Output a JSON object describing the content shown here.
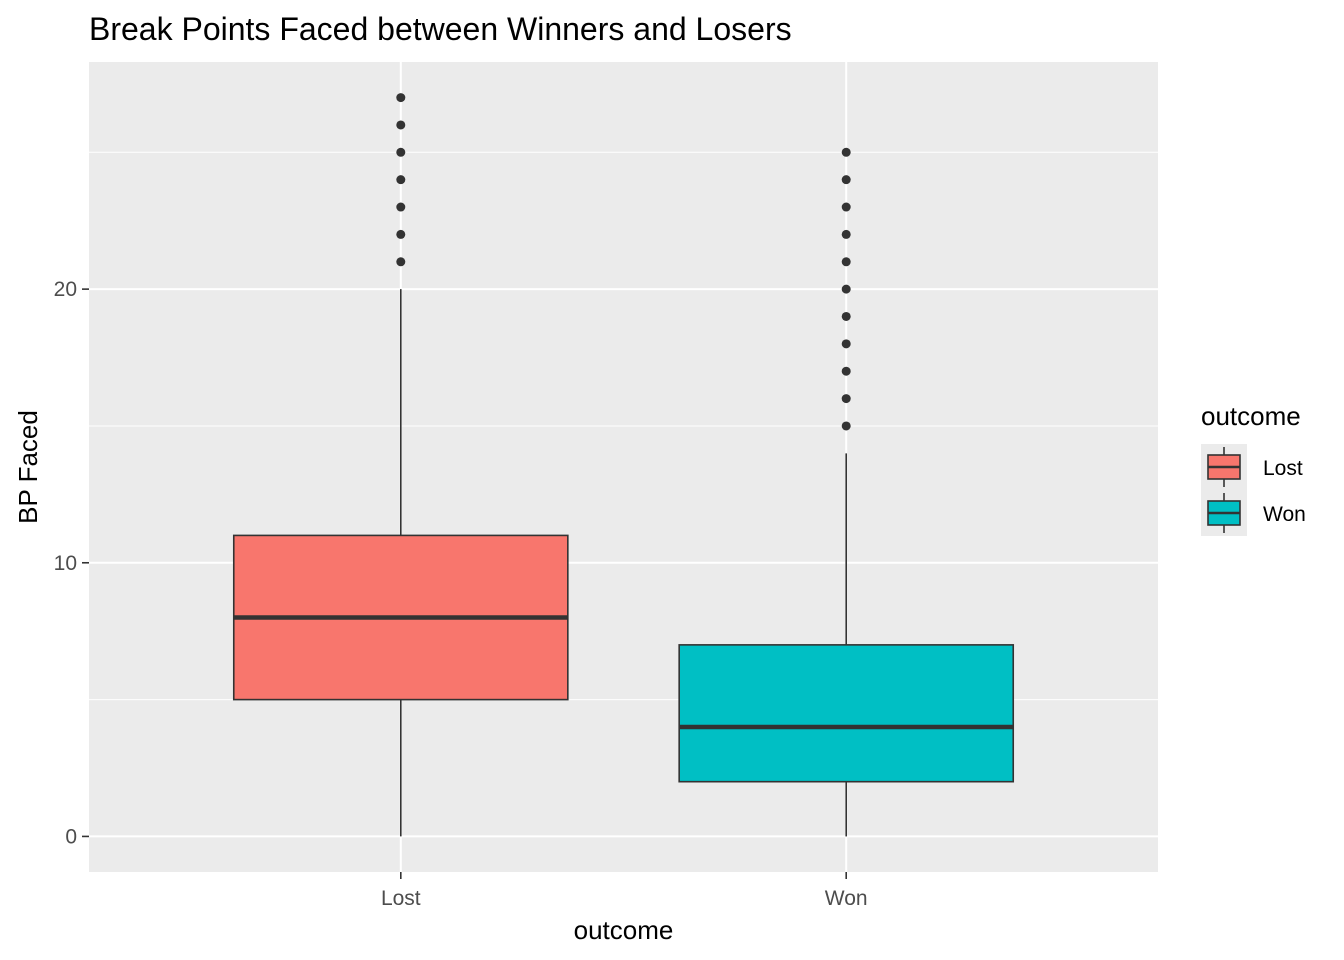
{
  "chart_data": {
    "type": "boxplot",
    "title": "Break Points Faced between Winners and Losers",
    "xlabel": "outcome",
    "ylabel": "BP Faced",
    "categories": [
      "Lost",
      "Won"
    ],
    "yticks": [
      0,
      10,
      20
    ],
    "ylim": [
      -1.3,
      28.3
    ],
    "grid": true,
    "legend": {
      "title": "outcome",
      "placement": "right"
    },
    "series": [
      {
        "category": "Lost",
        "color": "#F8766D",
        "min": 0,
        "q1": 5,
        "median": 8,
        "q3": 11,
        "max": 20,
        "outliers": [
          21,
          22,
          23,
          24,
          25,
          26,
          27
        ]
      },
      {
        "category": "Won",
        "color": "#00BFC4",
        "min": 0,
        "q1": 2,
        "median": 4,
        "q3": 7,
        "max": 14,
        "outliers": [
          15,
          16,
          17,
          18,
          19,
          20,
          21,
          22,
          23,
          24,
          25
        ]
      }
    ],
    "colors": {
      "panel": "#EBEBEB",
      "grid": "#FFFFFF",
      "outline": "#333333"
    }
  }
}
